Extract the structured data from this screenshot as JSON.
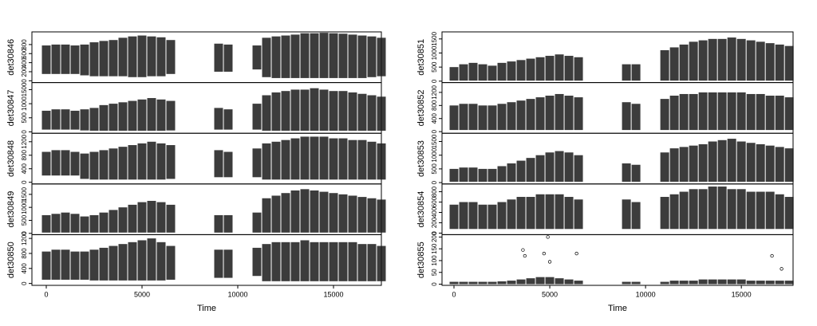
{
  "chart_data": [
    {
      "type": "scatter",
      "ylabel": "det30846",
      "ylim": [
        -40,
        1080
      ],
      "yticks": [
        0,
        200,
        400,
        600,
        800
      ],
      "xlim": [
        -750,
        17500
      ],
      "x": [
        0,
        500,
        1000,
        1500,
        2000,
        2500,
        3000,
        3500,
        4000,
        4500,
        5000,
        5500,
        6000,
        6500,
        7000,
        7500,
        8000,
        8500,
        9000,
        9500,
        10000,
        10500,
        11000,
        11500,
        12000,
        12500,
        13000,
        13500,
        14000,
        14500,
        15000,
        15500,
        16000,
        16500,
        17000,
        17500
      ],
      "low": [
        150,
        150,
        150,
        150,
        120,
        100,
        100,
        100,
        100,
        80,
        80,
        100,
        100,
        150,
        null,
        null,
        null,
        null,
        200,
        200,
        null,
        null,
        250,
        80,
        60,
        60,
        60,
        60,
        60,
        60,
        60,
        60,
        60,
        60,
        80,
        100
      ],
      "high": [
        780,
        800,
        800,
        780,
        800,
        850,
        880,
        900,
        950,
        980,
        1000,
        980,
        960,
        900,
        null,
        null,
        null,
        null,
        820,
        800,
        null,
        null,
        780,
        950,
        980,
        1000,
        1020,
        1050,
        1050,
        1060,
        1050,
        1040,
        1020,
        1000,
        980,
        950
      ]
    },
    {
      "type": "scatter",
      "ylabel": "det30847",
      "ylim": [
        -50,
        1750
      ],
      "yticks": [
        0,
        500,
        1000,
        1500
      ],
      "xlim": [
        -750,
        17500
      ],
      "x": [
        0,
        500,
        1000,
        1500,
        2000,
        2500,
        3000,
        3500,
        4000,
        4500,
        5000,
        5500,
        6000,
        6500,
        7000,
        7500,
        8000,
        8500,
        9000,
        9500,
        10000,
        10500,
        11000,
        11500,
        12000,
        12500,
        13000,
        13500,
        14000,
        14500,
        15000,
        15500,
        16000,
        16500,
        17000,
        17500
      ],
      "low": [
        80,
        80,
        80,
        80,
        50,
        40,
        40,
        40,
        40,
        40,
        40,
        40,
        40,
        50,
        null,
        null,
        null,
        null,
        80,
        80,
        null,
        null,
        80,
        40,
        40,
        40,
        40,
        40,
        40,
        40,
        40,
        40,
        40,
        40,
        40,
        40
      ],
      "high": [
        750,
        800,
        800,
        750,
        800,
        850,
        950,
        1000,
        1050,
        1100,
        1150,
        1200,
        1150,
        1100,
        null,
        null,
        null,
        null,
        850,
        800,
        null,
        null,
        1000,
        1300,
        1400,
        1450,
        1500,
        1500,
        1550,
        1500,
        1450,
        1450,
        1400,
        1350,
        1300,
        1250
      ]
    },
    {
      "type": "scatter",
      "ylabel": "det30848",
      "ylim": [
        -50,
        1450
      ],
      "yticks": [
        0,
        400,
        800,
        1200
      ],
      "xlim": [
        -750,
        17500
      ],
      "x": [
        0,
        500,
        1000,
        1500,
        2000,
        2500,
        3000,
        3500,
        4000,
        4500,
        5000,
        5500,
        6000,
        6500,
        7000,
        7500,
        8000,
        8500,
        9000,
        9500,
        10000,
        10500,
        11000,
        11500,
        12000,
        12500,
        13000,
        13500,
        14000,
        14500,
        15000,
        15500,
        16000,
        16500,
        17000,
        17500
      ],
      "low": [
        200,
        200,
        200,
        200,
        100,
        80,
        80,
        80,
        80,
        80,
        80,
        80,
        80,
        100,
        null,
        null,
        null,
        null,
        150,
        150,
        null,
        null,
        150,
        80,
        80,
        80,
        80,
        80,
        80,
        80,
        80,
        80,
        80,
        80,
        80,
        80
      ],
      "high": [
        900,
        950,
        950,
        900,
        850,
        900,
        950,
        1000,
        1050,
        1100,
        1150,
        1200,
        1150,
        1100,
        null,
        null,
        null,
        null,
        950,
        900,
        null,
        null,
        1000,
        1150,
        1200,
        1250,
        1300,
        1350,
        1350,
        1350,
        1300,
        1300,
        1250,
        1250,
        1200,
        1150
      ]
    },
    {
      "type": "scatter",
      "ylabel": "det30849",
      "ylim": [
        -50,
        1900
      ],
      "yticks": [
        0,
        500,
        1000,
        1500
      ],
      "xlim": [
        -750,
        17500
      ],
      "x": [
        0,
        500,
        1000,
        1500,
        2000,
        2500,
        3000,
        3500,
        4000,
        4500,
        5000,
        5500,
        6000,
        6500,
        7000,
        7500,
        8000,
        8500,
        9000,
        9500,
        10000,
        10500,
        11000,
        11500,
        12000,
        12500,
        13000,
        13500,
        14000,
        14500,
        15000,
        15500,
        16000,
        16500,
        17000,
        17500
      ],
      "low": [
        30,
        30,
        30,
        30,
        30,
        30,
        30,
        30,
        30,
        30,
        30,
        30,
        30,
        30,
        null,
        null,
        null,
        null,
        30,
        30,
        null,
        null,
        30,
        30,
        30,
        30,
        30,
        30,
        30,
        30,
        30,
        30,
        30,
        30,
        30,
        30
      ],
      "high": [
        700,
        750,
        800,
        750,
        650,
        700,
        800,
        900,
        1000,
        1100,
        1200,
        1250,
        1200,
        1100,
        null,
        null,
        null,
        null,
        700,
        700,
        null,
        null,
        800,
        1350,
        1450,
        1550,
        1650,
        1700,
        1650,
        1600,
        1550,
        1500,
        1450,
        1400,
        1350,
        1300
      ]
    },
    {
      "type": "scatter",
      "ylabel": "det30850",
      "ylim": [
        -50,
        1300
      ],
      "yticks": [
        0,
        400,
        800,
        1200
      ],
      "xlim": [
        -750,
        17500
      ],
      "xticks": [
        0,
        5000,
        10000,
        15000
      ],
      "xlabel": "Time",
      "x": [
        0,
        500,
        1000,
        1500,
        2000,
        2500,
        3000,
        3500,
        4000,
        4500,
        5000,
        5500,
        6000,
        6500,
        7000,
        7500,
        8000,
        8500,
        9000,
        9500,
        10000,
        10500,
        11000,
        11500,
        12000,
        12500,
        13000,
        13500,
        14000,
        14500,
        15000,
        15500,
        16000,
        16500,
        17000,
        17500
      ],
      "low": [
        100,
        100,
        100,
        100,
        100,
        80,
        80,
        80,
        80,
        80,
        80,
        80,
        80,
        100,
        null,
        null,
        null,
        null,
        150,
        150,
        null,
        null,
        200,
        60,
        60,
        60,
        60,
        60,
        60,
        60,
        60,
        60,
        60,
        60,
        60,
        60
      ],
      "high": [
        850,
        900,
        900,
        850,
        850,
        900,
        950,
        1000,
        1050,
        1100,
        1150,
        1200,
        1100,
        1000,
        null,
        null,
        null,
        null,
        900,
        900,
        null,
        null,
        950,
        1050,
        1100,
        1100,
        1100,
        1150,
        1100,
        1100,
        1100,
        1100,
        1100,
        1050,
        1050,
        1000
      ]
    },
    {
      "type": "scatter",
      "ylabel": "det30851",
      "ylim": [
        -50,
        1750
      ],
      "yticks": [
        0,
        500,
        1000,
        1500
      ],
      "xlim": [
        -625,
        17700
      ],
      "x": [
        0,
        500,
        1000,
        1500,
        2000,
        2500,
        3000,
        3500,
        4000,
        4500,
        5000,
        5500,
        6000,
        6500,
        7000,
        7500,
        8000,
        8500,
        9000,
        9500,
        10000,
        10500,
        11000,
        11500,
        12000,
        12500,
        13000,
        13500,
        14000,
        14500,
        15000,
        15500,
        16000,
        16500,
        17000,
        17500
      ],
      "low": [
        20,
        20,
        20,
        20,
        20,
        20,
        20,
        20,
        20,
        20,
        20,
        20,
        20,
        20,
        null,
        null,
        null,
        null,
        20,
        20,
        null,
        null,
        20,
        20,
        20,
        20,
        20,
        20,
        20,
        20,
        20,
        20,
        20,
        20,
        20,
        20
      ],
      "high": [
        500,
        600,
        650,
        600,
        550,
        650,
        700,
        750,
        800,
        850,
        900,
        950,
        900,
        850,
        null,
        null,
        null,
        null,
        600,
        600,
        null,
        null,
        1100,
        1200,
        1300,
        1400,
        1450,
        1500,
        1500,
        1550,
        1500,
        1450,
        1400,
        1350,
        1300,
        1250
      ]
    },
    {
      "type": "scatter",
      "ylabel": "det30852",
      "ylim": [
        -50,
        1500
      ],
      "yticks": [
        0,
        400,
        800,
        1200
      ],
      "xlim": [
        -625,
        17700
      ],
      "x": [
        0,
        500,
        1000,
        1500,
        2000,
        2500,
        3000,
        3500,
        4000,
        4500,
        5000,
        5500,
        6000,
        6500,
        7000,
        7500,
        8000,
        8500,
        9000,
        9500,
        10000,
        10500,
        11000,
        11500,
        12000,
        12500,
        13000,
        13500,
        14000,
        14500,
        15000,
        15500,
        16000,
        16500,
        17000,
        17500
      ],
      "low": [
        50,
        50,
        50,
        50,
        50,
        50,
        50,
        50,
        50,
        50,
        50,
        50,
        50,
        50,
        null,
        null,
        null,
        null,
        50,
        50,
        null,
        null,
        50,
        50,
        50,
        50,
        50,
        50,
        50,
        50,
        50,
        50,
        50,
        50,
        50,
        50
      ],
      "high": [
        800,
        850,
        850,
        800,
        800,
        850,
        900,
        950,
        1000,
        1050,
        1100,
        1150,
        1100,
        1050,
        null,
        null,
        null,
        null,
        900,
        850,
        null,
        null,
        1000,
        1100,
        1150,
        1150,
        1200,
        1200,
        1200,
        1200,
        1200,
        1150,
        1150,
        1100,
        1100,
        1050
      ]
    },
    {
      "type": "scatter",
      "ylabel": "det30853",
      "ylim": [
        -50,
        1800
      ],
      "yticks": [
        0,
        500,
        1000,
        1500
      ],
      "xlim": [
        -625,
        17700
      ],
      "x": [
        0,
        500,
        1000,
        1500,
        2000,
        2500,
        3000,
        3500,
        4000,
        4500,
        5000,
        5500,
        6000,
        6500,
        7000,
        7500,
        8000,
        8500,
        9000,
        9500,
        10000,
        10500,
        11000,
        11500,
        12000,
        12500,
        13000,
        13500,
        14000,
        14500,
        15000,
        15500,
        16000,
        16500,
        17000,
        17500
      ],
      "low": [
        30,
        30,
        30,
        30,
        30,
        30,
        30,
        30,
        30,
        30,
        30,
        30,
        30,
        30,
        null,
        null,
        null,
        null,
        30,
        30,
        null,
        null,
        30,
        30,
        30,
        30,
        30,
        30,
        30,
        30,
        30,
        30,
        30,
        30,
        30,
        30
      ],
      "high": [
        500,
        550,
        550,
        500,
        500,
        600,
        700,
        800,
        900,
        1000,
        1100,
        1150,
        1100,
        1000,
        null,
        null,
        null,
        null,
        700,
        650,
        null,
        null,
        1100,
        1250,
        1300,
        1350,
        1400,
        1500,
        1550,
        1600,
        1500,
        1450,
        1400,
        1350,
        1300,
        1250
      ]
    },
    {
      "type": "scatter",
      "ylabel": "det30854",
      "ylim": [
        -30,
        950
      ],
      "yticks": [
        0,
        200,
        400,
        600,
        800
      ],
      "xlim": [
        -625,
        17700
      ],
      "x": [
        0,
        500,
        1000,
        1500,
        2000,
        2500,
        3000,
        3500,
        4000,
        4500,
        5000,
        5500,
        6000,
        6500,
        7000,
        7500,
        8000,
        8500,
        9000,
        9500,
        10000,
        10500,
        11000,
        11500,
        12000,
        12500,
        13000,
        13500,
        14000,
        14500,
        15000,
        15500,
        16000,
        16500,
        17000,
        17500
      ],
      "low": [
        80,
        80,
        80,
        80,
        80,
        80,
        80,
        80,
        80,
        80,
        80,
        80,
        80,
        80,
        null,
        null,
        null,
        null,
        80,
        80,
        null,
        null,
        80,
        80,
        80,
        80,
        80,
        80,
        80,
        80,
        80,
        80,
        80,
        80,
        80,
        80
      ],
      "high": [
        550,
        600,
        600,
        550,
        550,
        600,
        650,
        700,
        700,
        750,
        750,
        750,
        700,
        650,
        null,
        null,
        null,
        null,
        650,
        600,
        null,
        null,
        700,
        750,
        800,
        850,
        850,
        900,
        900,
        850,
        850,
        800,
        800,
        800,
        750,
        700
      ]
    },
    {
      "type": "scatter",
      "ylabel": "det30855",
      "ylim": [
        -5,
        210
      ],
      "yticks": [
        0,
        50,
        100,
        150,
        200
      ],
      "xlim": [
        -625,
        17700
      ],
      "xticks": [
        0,
        5000,
        10000,
        15000
      ],
      "xlabel": "Time",
      "x": [
        0,
        500,
        1000,
        1500,
        2000,
        2500,
        3000,
        3500,
        4000,
        4500,
        5000,
        5500,
        6000,
        6500,
        7000,
        7500,
        8000,
        8500,
        9000,
        9500,
        10000,
        10500,
        11000,
        11500,
        12000,
        12500,
        13000,
        13500,
        14000,
        14500,
        15000,
        15500,
        16000,
        16500,
        17000,
        17500
      ],
      "low": [
        0,
        0,
        0,
        0,
        0,
        0,
        0,
        0,
        0,
        0,
        0,
        0,
        0,
        0,
        null,
        null,
        null,
        null,
        0,
        0,
        null,
        null,
        0,
        0,
        0,
        0,
        0,
        0,
        0,
        0,
        0,
        0,
        0,
        0,
        0,
        0
      ],
      "high": [
        10,
        10,
        10,
        10,
        10,
        12,
        15,
        20,
        25,
        30,
        30,
        25,
        20,
        15,
        null,
        null,
        null,
        null,
        10,
        10,
        null,
        null,
        10,
        15,
        15,
        15,
        20,
        20,
        20,
        20,
        20,
        15,
        15,
        15,
        15,
        15
      ],
      "points": {
        "x": [
          3600,
          3700,
          4700,
          4900,
          5000,
          6400,
          16600,
          17100
        ],
        "y": [
          145,
          120,
          130,
          200,
          95,
          130,
          120,
          65
        ]
      }
    }
  ]
}
